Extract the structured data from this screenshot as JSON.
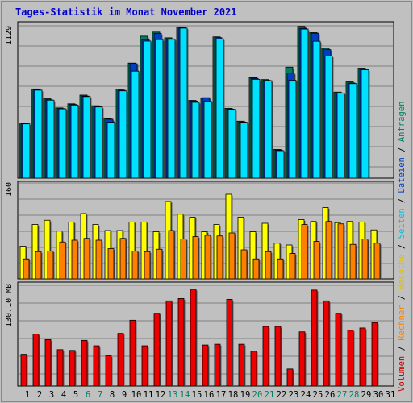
{
  "page": {
    "title": "Tages-Statistik im Monat November 2021"
  },
  "legend": [
    {
      "label": "Volumen",
      "color": "#cc0000"
    },
    {
      "label": " / ",
      "color": "#000000"
    },
    {
      "label": "Rechner",
      "color": "#ff8000"
    },
    {
      "label": " / ",
      "color": "#000000"
    },
    {
      "label": "Besuche",
      "color": "#e0c000"
    },
    {
      "label": " / ",
      "color": "#000000"
    },
    {
      "label": "Seiten",
      "color": "#00c0e0"
    },
    {
      "label": " / ",
      "color": "#000000"
    },
    {
      "label": "Dateien",
      "color": "#0040c0"
    },
    {
      "label": " / ",
      "color": "#000000"
    },
    {
      "label": "Anfragen",
      "color": "#008060"
    }
  ],
  "chart_data": [
    {
      "type": "bar",
      "ylabel": "1129",
      "ylim": [
        0,
        1129
      ],
      "categories": [
        "1",
        "2",
        "3",
        "4",
        "5",
        "6",
        "7",
        "8",
        "9",
        "10",
        "11",
        "12",
        "13",
        "14",
        "15",
        "16",
        "17",
        "18",
        "19",
        "20",
        "21",
        "22",
        "23",
        "24",
        "25",
        "26",
        "27",
        "28",
        "29",
        "30",
        "31"
      ],
      "weekend_days": [
        "6",
        "7",
        "13",
        "14",
        "20",
        "21",
        "27",
        "28"
      ],
      "series": [
        {
          "name": "Anfragen",
          "color": "#008060",
          "values": [
            405,
            654,
            582,
            515,
            545,
            609,
            531,
            437,
            652,
            844,
            1041,
            1071,
            1029,
            1109,
            570,
            583,
            1036,
            512,
            418,
            737,
            723,
            210,
            814,
            1113,
            1067,
            952,
            631,
            706,
            807,
            0,
            0
          ]
        },
        {
          "name": "Dateien",
          "color": "#0040c0",
          "values": [
            400,
            648,
            575,
            510,
            540,
            602,
            525,
            432,
            645,
            839,
            1016,
            1062,
            1022,
            1104,
            565,
            590,
            1030,
            506,
            412,
            732,
            717,
            206,
            770,
            1099,
            1063,
            942,
            625,
            698,
            800,
            0,
            0
          ]
        },
        {
          "name": "Seiten",
          "color": "#00e0ff",
          "values": [
            398,
            645,
            572,
            508,
            536,
            598,
            522,
            410,
            640,
            785,
            1005,
            1016,
            1018,
            1100,
            556,
            565,
            1021,
            503,
            409,
            725,
            715,
            201,
            718,
            1093,
            1004,
            895,
            623,
            693,
            795,
            0,
            0
          ]
        }
      ]
    },
    {
      "type": "bar",
      "ylabel": "160",
      "ylim": [
        0,
        160
      ],
      "categories": [
        "1",
        "2",
        "3",
        "4",
        "5",
        "6",
        "7",
        "8",
        "9",
        "10",
        "11",
        "12",
        "13",
        "14",
        "15",
        "16",
        "17",
        "18",
        "19",
        "20",
        "21",
        "22",
        "23",
        "24",
        "25",
        "26",
        "27",
        "28",
        "29",
        "30",
        "31"
      ],
      "series": [
        {
          "name": "Besuche",
          "color": "#ffff00",
          "values": [
            54,
            90,
            97,
            79,
            94,
            108,
            90,
            80,
            80,
            94,
            94,
            78,
            128,
            107,
            102,
            78,
            90,
            140,
            102,
            78,
            92,
            59,
            56,
            98,
            95,
            118,
            93,
            95,
            94,
            81,
            0
          ]
        },
        {
          "name": "Rechner",
          "color": "#ff8000",
          "values": [
            33,
            45,
            46,
            61,
            64,
            67,
            64,
            50,
            67,
            46,
            45,
            49,
            80,
            66,
            70,
            72,
            71,
            76,
            48,
            33,
            45,
            33,
            42,
            90,
            62,
            95,
            91,
            57,
            66,
            59,
            0
          ]
        }
      ]
    },
    {
      "type": "bar",
      "ylabel": "130.10 MB",
      "ylim": [
        0,
        130.1
      ],
      "categories": [
        "1",
        "2",
        "3",
        "4",
        "5",
        "6",
        "7",
        "8",
        "9",
        "10",
        "11",
        "12",
        "13",
        "14",
        "15",
        "16",
        "17",
        "18",
        "19",
        "20",
        "21",
        "22",
        "23",
        "24",
        "25",
        "26",
        "27",
        "28",
        "29",
        "30",
        "31"
      ],
      "series": [
        {
          "name": "Volumen",
          "color": "#ee0000",
          "values": [
            41,
            67,
            60,
            47,
            46,
            59,
            52,
            39,
            68,
            85,
            52,
            94,
            110,
            113,
            125,
            53,
            54,
            112,
            54,
            45,
            77,
            77,
            22,
            70,
            124,
            110,
            94,
            72,
            75,
            82,
            0
          ]
        }
      ]
    }
  ]
}
